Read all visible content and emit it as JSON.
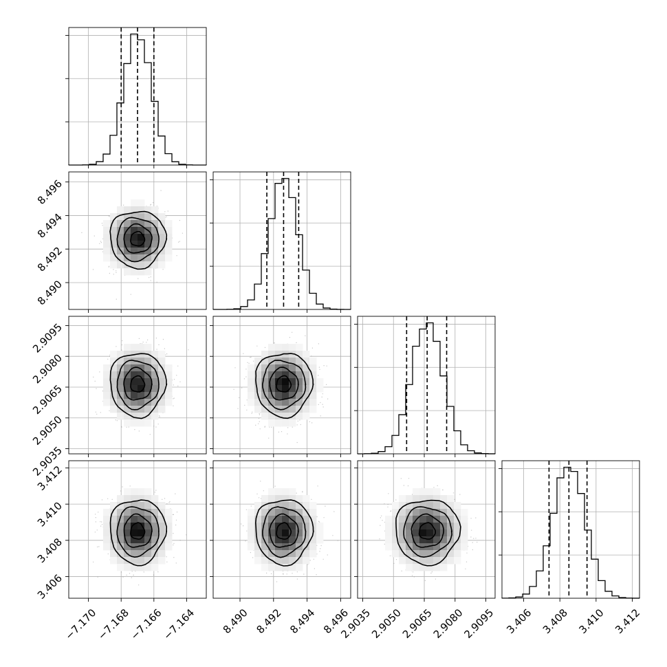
{
  "chart_data": {
    "type": "corner",
    "grid": true,
    "n_params": 4,
    "params": [
      {
        "key": "p0",
        "range": [
          -7.1712,
          -7.1628
        ],
        "mean": -7.167,
        "sigma": 0.00085,
        "quantiles": [
          -7.168,
          -7.167,
          -7.166
        ],
        "ticks": [
          -7.17,
          -7.168,
          -7.166,
          -7.164
        ],
        "tick_labels": [
          "−7.170",
          "−7.168",
          "−7.166",
          "−7.164"
        ]
      },
      {
        "key": "p1",
        "range": [
          8.4884,
          8.4966
        ],
        "mean": 8.4926,
        "sigma": 0.00085,
        "quantiles": [
          8.4916,
          8.4926,
          8.4935
        ],
        "ticks": [
          8.49,
          8.492,
          8.494,
          8.496
        ],
        "tick_labels": [
          "8.490",
          "8.492",
          "8.494",
          "8.496"
        ]
      },
      {
        "key": "p2",
        "range": [
          2.90325,
          2.90995
        ],
        "mean": 2.90664,
        "sigma": 0.00078,
        "quantiles": [
          2.90564,
          2.90664,
          2.90759
        ],
        "ticks": [
          2.9035,
          2.905,
          2.9065,
          2.908,
          2.9095
        ],
        "tick_labels": [
          "2.9035",
          "2.9050",
          "2.9065",
          "2.9080",
          "2.9095"
        ]
      },
      {
        "key": "p3",
        "range": [
          3.4048,
          3.4124
        ],
        "mean": 3.4085,
        "sigma": 0.0009,
        "quantiles": [
          3.4074,
          3.4085,
          3.4095
        ],
        "ticks": [
          3.406,
          3.408,
          3.41,
          3.412
        ],
        "tick_labels": [
          "3.406",
          "3.408",
          "3.410",
          "3.412"
        ]
      }
    ],
    "contour_levels_sigma": [
      0.5,
      1.0,
      1.5,
      2.0
    ],
    "colors": {
      "line": "#000000",
      "grid": "#b0b0b0",
      "points": "#9a9a9a",
      "background": "#ffffff"
    }
  }
}
